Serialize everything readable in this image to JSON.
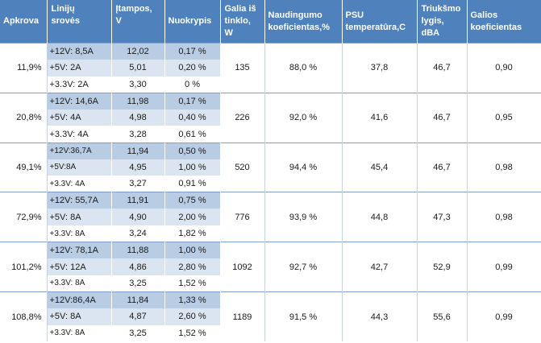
{
  "headers": {
    "apkrova": "Apkrova",
    "linijos": [
      "Linijų",
      "srovės"
    ],
    "itampos": [
      "Įtampos,",
      "V"
    ],
    "nuokrypis": "Nuokrypis",
    "galia": [
      "Galia iš",
      "tinklo,",
      "W"
    ],
    "naudingumo": [
      "Naudingumo",
      "koeficientas,%"
    ],
    "psu": [
      "PSU",
      "temperatūra,C"
    ],
    "triuksmo": [
      "Triukšmo",
      "lygis,",
      "dBA"
    ],
    "galios": [
      "Galios",
      "koeficientas"
    ]
  },
  "groups": [
    {
      "load": "11,9%",
      "power": "135",
      "efficiency": "88,0 %",
      "temp": "37,8",
      "noise": "46,7",
      "pf": "0,90",
      "rows": [
        {
          "current": "+12V: 8,5A",
          "voltage": "12,02",
          "deviation": "0,17 %"
        },
        {
          "current": "+5V: 2A",
          "voltage": "5,01",
          "deviation": "0,20 %"
        },
        {
          "current": "+3.3V: 2A",
          "voltage": "3,30",
          "deviation": "0 %"
        }
      ]
    },
    {
      "load": "20,8%",
      "power": "226",
      "efficiency": "92,0 %",
      "temp": "41,6",
      "noise": "46,7",
      "pf": "0,95",
      "rows": [
        {
          "current": "+12V: 14,6A",
          "voltage": "11,98",
          "deviation": "0,17 %"
        },
        {
          "current": "+5V: 4A",
          "voltage": "4,98",
          "deviation": "0,40 %"
        },
        {
          "current": "+3.3V: 4A",
          "voltage": "3,28",
          "deviation": "0,61 %"
        }
      ]
    },
    {
      "load": "49,1%",
      "power": "520",
      "efficiency": "94,4 %",
      "temp": "45,4",
      "noise": "46,7",
      "pf": "0,98",
      "rows": [
        {
          "current": "+12V:36,7A",
          "voltage": "11,94",
          "deviation": "0,50 %",
          "small": true
        },
        {
          "current": "+5V:8A",
          "voltage": "4,95",
          "deviation": "1,00 %",
          "small": true
        },
        {
          "current": "+3.3V: 4A",
          "voltage": "3,27",
          "deviation": "0,91 %",
          "small": true
        }
      ]
    },
    {
      "load": "72,9%",
      "power": "776",
      "efficiency": "93,9 %",
      "temp": "44,8",
      "noise": "47,3",
      "pf": "0,98",
      "rows": [
        {
          "current": "+12V: 55,7A",
          "voltage": "11,91",
          "deviation": "0,75 %"
        },
        {
          "current": "+5V: 8A",
          "voltage": "4,90",
          "deviation": "2,00 %"
        },
        {
          "current": "+3.3V: 8A",
          "voltage": "3,24",
          "deviation": "1,82 %",
          "small": true
        }
      ]
    },
    {
      "load": "101,2%",
      "power": "1092",
      "efficiency": "92,7 %",
      "temp": "42,7",
      "noise": "52,9",
      "pf": "0,99",
      "rows": [
        {
          "current": "+12V: 78,1A",
          "voltage": "11,88",
          "deviation": "1,00 %"
        },
        {
          "current": "+5V: 12A",
          "voltage": "4,86",
          "deviation": "2,80 %"
        },
        {
          "current": "+3.3V: 8A",
          "voltage": "3,25",
          "deviation": "1,52 %",
          "small": true
        }
      ]
    },
    {
      "load": "108,8%",
      "power": "1189",
      "efficiency": "91,5 %",
      "temp": "44,3",
      "noise": "55,6",
      "pf": "0,99",
      "rows": [
        {
          "current": "+12V:86,4A",
          "voltage": "11,84",
          "deviation": "1,33 %"
        },
        {
          "current": "+5V: 8A",
          "voltage": "4,87",
          "deviation": "2,60 %"
        },
        {
          "current": "+3.3V: 8A",
          "voltage": "3,25",
          "deviation": "1,52 %",
          "small": true
        }
      ]
    }
  ]
}
